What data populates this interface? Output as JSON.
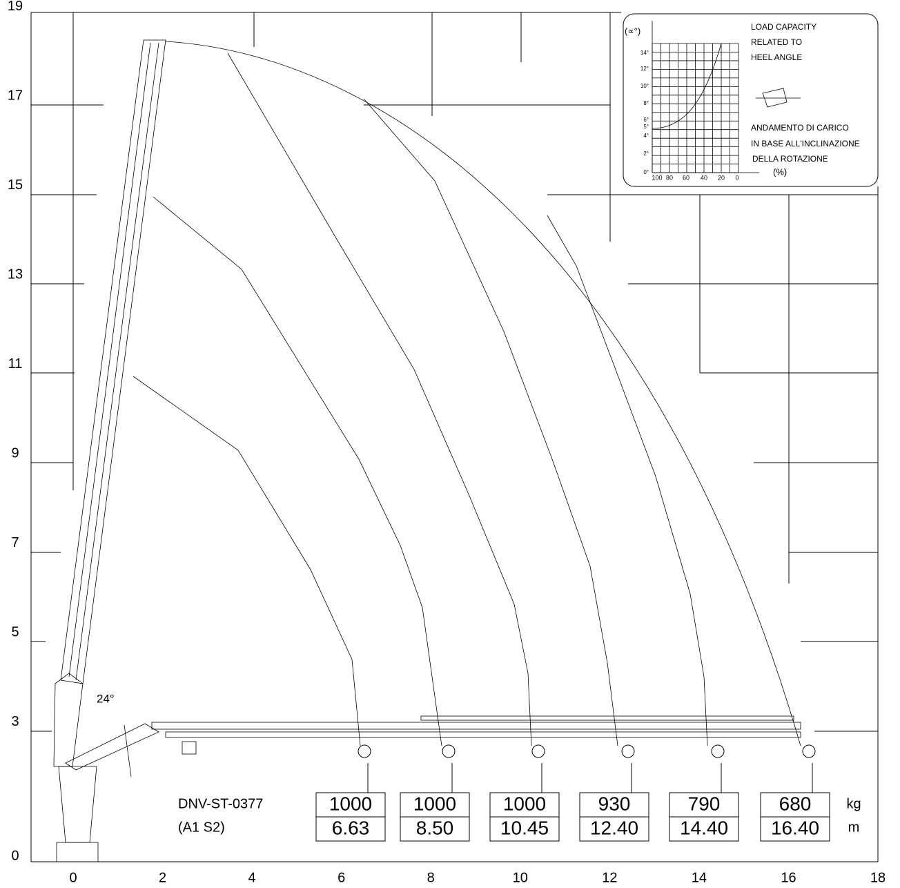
{
  "x_axis": {
    "ticks": [
      0,
      2,
      4,
      6,
      8,
      10,
      12,
      14,
      16,
      18
    ]
  },
  "y_axis": {
    "ticks": [
      0,
      3,
      5,
      7,
      9,
      11,
      13,
      15,
      17,
      19
    ]
  },
  "standard": "DNV-ST-0377",
  "class": "(A1 S2)",
  "angle": "24°",
  "units": {
    "load": "kg",
    "radius": "m"
  },
  "loads": [
    {
      "kg": "1000",
      "m": "6.63"
    },
    {
      "kg": "1000",
      "m": "8.50"
    },
    {
      "kg": "1000",
      "m": "10.45"
    },
    {
      "kg": "930",
      "m": "12.40"
    },
    {
      "kg": "790",
      "m": "14.40"
    },
    {
      "kg": "680",
      "m": "16.40"
    }
  ],
  "inset": {
    "y_label": "(∝°)",
    "x_label": "(%)",
    "y_ticks": [
      "14°",
      "12°",
      "10°",
      "8°",
      "6°",
      "5°",
      "4°",
      "2°",
      "0°"
    ],
    "x_ticks": [
      "100",
      "80",
      "60",
      "40",
      "20",
      "0"
    ],
    "title_en": [
      "LOAD CAPACITY",
      "RELATED TO",
      "HEEL ANGLE"
    ],
    "title_it": [
      "ANDAMENTO DI CARICO",
      "IN BASE ALL'INCLINAZIONE",
      "DELLA ROTAZIONE"
    ]
  }
}
